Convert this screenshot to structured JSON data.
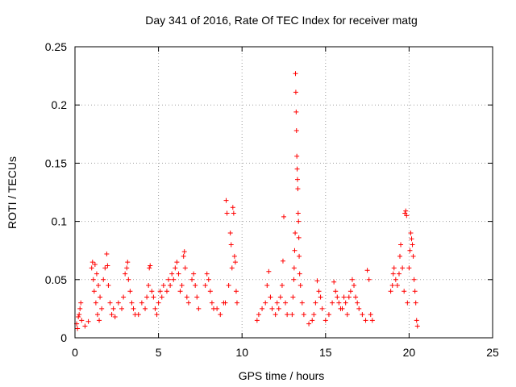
{
  "chart_data": {
    "type": "scatter",
    "title": "Day 341 of 2016, Rate Of TEC Index for receiver matg",
    "xlabel": "GPS time / hours",
    "ylabel": "ROTI / TECUs",
    "xlim": [
      0,
      25
    ],
    "ylim": [
      0,
      0.25
    ],
    "xticks": [
      0,
      5,
      10,
      15,
      20,
      25
    ],
    "xtick_labels": [
      "0",
      "5",
      "10",
      "15",
      "20",
      "25"
    ],
    "yticks": [
      0,
      0.05,
      0.1,
      0.15,
      0.2,
      0.25
    ],
    "ytick_labels": [
      "0",
      "0.05",
      "0.1",
      "0.15",
      "0.2",
      "0.25"
    ],
    "grid": true,
    "marker": "+",
    "color": "#ff0000",
    "series": [
      {
        "points": [
          [
            0.1,
            0.012
          ],
          [
            0.2,
            0.018
          ],
          [
            0.3,
            0.025
          ],
          [
            0.35,
            0.03
          ],
          [
            0.4,
            0.015
          ],
          [
            0.15,
            0.008
          ],
          [
            0.25,
            0.02
          ],
          [
            0.6,
            0.01
          ],
          [
            0.8,
            0.014
          ],
          [
            1.0,
            0.06
          ],
          [
            1.05,
            0.065
          ],
          [
            1.1,
            0.05
          ],
          [
            1.15,
            0.04
          ],
          [
            1.2,
            0.063
          ],
          [
            1.3,
            0.055
          ],
          [
            1.4,
            0.045
          ],
          [
            1.5,
            0.035
          ],
          [
            1.6,
            0.025
          ],
          [
            1.25,
            0.03
          ],
          [
            1.35,
            0.02
          ],
          [
            1.45,
            0.015
          ],
          [
            1.7,
            0.05
          ],
          [
            1.8,
            0.06
          ],
          [
            1.9,
            0.072
          ],
          [
            1.95,
            0.062
          ],
          [
            2.0,
            0.045
          ],
          [
            2.1,
            0.03
          ],
          [
            2.2,
            0.02
          ],
          [
            2.3,
            0.025
          ],
          [
            2.4,
            0.018
          ],
          [
            2.6,
            0.03
          ],
          [
            2.8,
            0.025
          ],
          [
            2.9,
            0.035
          ],
          [
            3.0,
            0.055
          ],
          [
            3.1,
            0.06
          ],
          [
            3.15,
            0.065
          ],
          [
            3.2,
            0.05
          ],
          [
            3.3,
            0.04
          ],
          [
            3.4,
            0.03
          ],
          [
            3.5,
            0.025
          ],
          [
            3.6,
            0.02
          ],
          [
            3.8,
            0.02
          ],
          [
            4.0,
            0.03
          ],
          [
            4.2,
            0.025
          ],
          [
            4.3,
            0.035
          ],
          [
            4.4,
            0.045
          ],
          [
            4.45,
            0.06
          ],
          [
            4.5,
            0.062
          ],
          [
            4.6,
            0.04
          ],
          [
            4.7,
            0.035
          ],
          [
            4.8,
            0.025
          ],
          [
            4.9,
            0.02
          ],
          [
            5.0,
            0.03
          ],
          [
            5.1,
            0.04
          ],
          [
            5.2,
            0.035
          ],
          [
            5.3,
            0.045
          ],
          [
            5.5,
            0.04
          ],
          [
            5.6,
            0.05
          ],
          [
            5.7,
            0.045
          ],
          [
            5.8,
            0.055
          ],
          [
            5.9,
            0.05
          ],
          [
            6.0,
            0.06
          ],
          [
            6.1,
            0.065
          ],
          [
            6.2,
            0.055
          ],
          [
            6.3,
            0.04
          ],
          [
            6.4,
            0.045
          ],
          [
            6.5,
            0.07
          ],
          [
            6.55,
            0.074
          ],
          [
            6.6,
            0.06
          ],
          [
            6.7,
            0.035
          ],
          [
            6.8,
            0.03
          ],
          [
            7.0,
            0.05
          ],
          [
            7.1,
            0.055
          ],
          [
            7.2,
            0.045
          ],
          [
            7.3,
            0.035
          ],
          [
            7.4,
            0.025
          ],
          [
            7.8,
            0.045
          ],
          [
            7.9,
            0.055
          ],
          [
            8.0,
            0.05
          ],
          [
            8.1,
            0.04
          ],
          [
            8.2,
            0.03
          ],
          [
            8.3,
            0.025
          ],
          [
            8.5,
            0.025
          ],
          [
            8.7,
            0.02
          ],
          [
            8.9,
            0.03
          ],
          [
            9.0,
            0.03
          ],
          [
            9.05,
            0.118
          ],
          [
            9.1,
            0.107
          ],
          [
            9.2,
            0.045
          ],
          [
            9.3,
            0.09
          ],
          [
            9.35,
            0.08
          ],
          [
            9.4,
            0.06
          ],
          [
            9.45,
            0.112
          ],
          [
            9.5,
            0.107
          ],
          [
            9.55,
            0.07
          ],
          [
            9.6,
            0.065
          ],
          [
            9.65,
            0.04
          ],
          [
            9.7,
            0.03
          ],
          [
            10.9,
            0.015
          ],
          [
            11.0,
            0.02
          ],
          [
            11.2,
            0.025
          ],
          [
            11.4,
            0.03
          ],
          [
            11.5,
            0.045
          ],
          [
            11.6,
            0.057
          ],
          [
            11.7,
            0.035
          ],
          [
            11.8,
            0.025
          ],
          [
            12.0,
            0.02
          ],
          [
            12.1,
            0.03
          ],
          [
            12.2,
            0.025
          ],
          [
            12.3,
            0.035
          ],
          [
            12.4,
            0.045
          ],
          [
            12.45,
            0.066
          ],
          [
            12.5,
            0.104
          ],
          [
            12.6,
            0.03
          ],
          [
            12.7,
            0.02
          ],
          [
            13.0,
            0.02
          ],
          [
            13.05,
            0.035
          ],
          [
            13.1,
            0.05
          ],
          [
            13.12,
            0.06
          ],
          [
            13.15,
            0.075
          ],
          [
            13.18,
            0.09
          ],
          [
            13.2,
            0.227
          ],
          [
            13.22,
            0.211
          ],
          [
            13.24,
            0.194
          ],
          [
            13.26,
            0.178
          ],
          [
            13.28,
            0.156
          ],
          [
            13.3,
            0.145
          ],
          [
            13.32,
            0.136
          ],
          [
            13.34,
            0.128
          ],
          [
            13.36,
            0.107
          ],
          [
            13.38,
            0.1
          ],
          [
            13.4,
            0.086
          ],
          [
            13.42,
            0.07
          ],
          [
            13.45,
            0.055
          ],
          [
            13.5,
            0.045
          ],
          [
            13.6,
            0.03
          ],
          [
            13.7,
            0.02
          ],
          [
            14.0,
            0.012
          ],
          [
            14.2,
            0.015
          ],
          [
            14.3,
            0.02
          ],
          [
            14.4,
            0.03
          ],
          [
            14.5,
            0.049
          ],
          [
            14.6,
            0.04
          ],
          [
            14.7,
            0.035
          ],
          [
            14.8,
            0.025
          ],
          [
            15.0,
            0.015
          ],
          [
            15.2,
            0.02
          ],
          [
            15.4,
            0.03
          ],
          [
            15.5,
            0.048
          ],
          [
            15.6,
            0.04
          ],
          [
            15.7,
            0.035
          ],
          [
            15.8,
            0.03
          ],
          [
            15.9,
            0.025
          ],
          [
            16.0,
            0.025
          ],
          [
            16.1,
            0.035
          ],
          [
            16.2,
            0.03
          ],
          [
            16.3,
            0.02
          ],
          [
            16.4,
            0.035
          ],
          [
            16.5,
            0.04
          ],
          [
            16.6,
            0.05
          ],
          [
            16.7,
            0.045
          ],
          [
            16.8,
            0.035
          ],
          [
            16.9,
            0.03
          ],
          [
            17.0,
            0.025
          ],
          [
            17.2,
            0.02
          ],
          [
            17.4,
            0.015
          ],
          [
            17.5,
            0.058
          ],
          [
            17.6,
            0.05
          ],
          [
            17.7,
            0.02
          ],
          [
            17.8,
            0.015
          ],
          [
            18.9,
            0.04
          ],
          [
            19.0,
            0.045
          ],
          [
            19.05,
            0.055
          ],
          [
            19.1,
            0.06
          ],
          [
            19.2,
            0.05
          ],
          [
            19.3,
            0.045
          ],
          [
            19.4,
            0.055
          ],
          [
            19.45,
            0.07
          ],
          [
            19.5,
            0.08
          ],
          [
            19.6,
            0.06
          ],
          [
            19.7,
            0.04
          ],
          [
            19.75,
            0.107
          ],
          [
            19.8,
            0.109
          ],
          [
            19.85,
            0.105
          ],
          [
            19.9,
            0.03
          ],
          [
            20.0,
            0.06
          ],
          [
            20.05,
            0.075
          ],
          [
            20.1,
            0.09
          ],
          [
            20.15,
            0.085
          ],
          [
            20.2,
            0.08
          ],
          [
            20.25,
            0.07
          ],
          [
            20.3,
            0.05
          ],
          [
            20.35,
            0.04
          ],
          [
            20.4,
            0.03
          ],
          [
            20.45,
            0.015
          ],
          [
            20.5,
            0.01
          ]
        ]
      }
    ]
  }
}
